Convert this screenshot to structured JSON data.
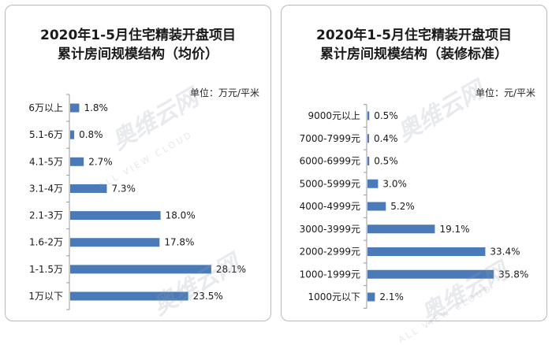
{
  "chart_data": [
    {
      "type": "bar",
      "orientation": "horizontal",
      "title_line1": "2020年1-5月住宅精装开盘项目",
      "title_line2": "累计房间规模结构（均价）",
      "unit": "单位：万元/平米",
      "categories": [
        "6万以上",
        "5.1-6万",
        "4.1-5万",
        "3.1-4万",
        "2.1-3万",
        "1.6-2万",
        "1-1.5万",
        "1万以下"
      ],
      "values": [
        1.8,
        0.8,
        2.7,
        7.3,
        18.0,
        17.8,
        28.1,
        23.5
      ],
      "labels": [
        "1.8%",
        "0.8%",
        "2.7%",
        "7.3%",
        "18.0%",
        "17.8%",
        "28.1%",
        "23.5%"
      ],
      "xlim": [
        0,
        30
      ]
    },
    {
      "type": "bar",
      "orientation": "horizontal",
      "title_line1": "2020年1-5月住宅精装开盘项目",
      "title_line2": "累计房间规模结构（装修标准）",
      "unit": "单位：元/平米",
      "categories": [
        "9000元以上",
        "7000-7999元",
        "6000-6999元",
        "5000-5999元",
        "4000-4999元",
        "3000-3999元",
        "2000-2999元",
        "1000-1999元",
        "1000元以下"
      ],
      "values": [
        0.5,
        0.4,
        0.5,
        3.0,
        5.2,
        19.1,
        33.4,
        35.8,
        2.1
      ],
      "labels": [
        "0.5%",
        "0.4%",
        "0.5%",
        "3.0%",
        "5.2%",
        "19.1%",
        "33.4%",
        "35.8%",
        "2.1%"
      ],
      "xlim": [
        0,
        38
      ]
    }
  ],
  "colors": {
    "bar": "#4a7ab8",
    "axis": "#9a9a9a",
    "text": "#1a1a1a"
  },
  "watermark": {
    "text": "奥维云网",
    "sub": "ALL VIEW CLOUD"
  }
}
